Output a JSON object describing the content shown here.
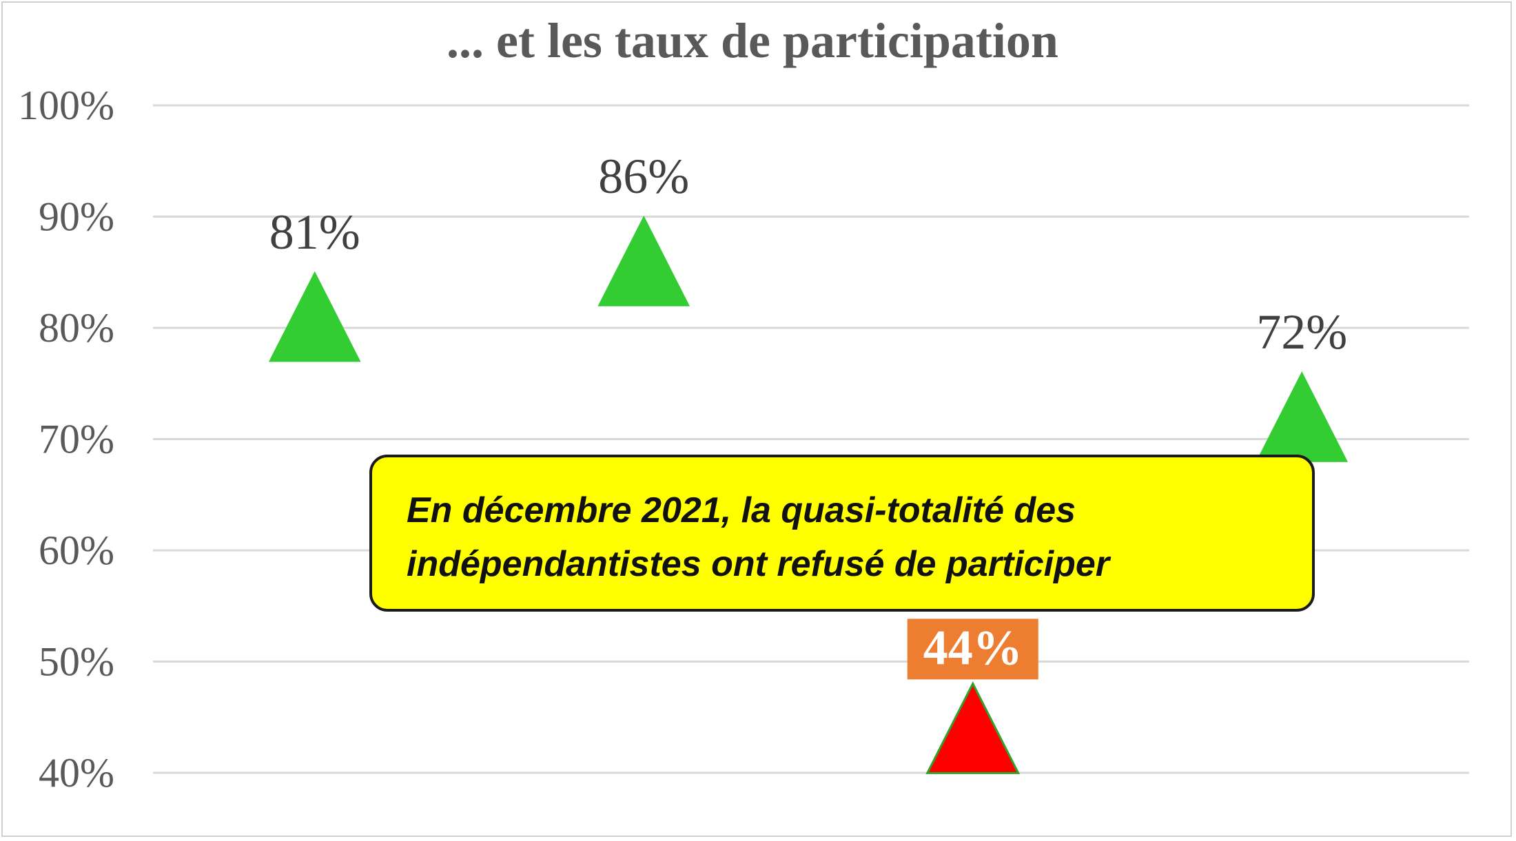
{
  "chart_data": {
    "type": "scatter",
    "title": "... et les taux de participation",
    "marker": "triangle",
    "xlabel": "",
    "ylabel": "",
    "ylim": [
      40,
      100
    ],
    "y_ticks": [
      "100%",
      "90%",
      "80%",
      "70%",
      "60%",
      "50%",
      "40%"
    ],
    "grid": true,
    "points": [
      {
        "label": "81%",
        "value": 81,
        "color": "#33cc33",
        "highlight": false
      },
      {
        "label": "86%",
        "value": 86,
        "color": "#33cc33",
        "highlight": false
      },
      {
        "label": "44%",
        "value": 44,
        "color": "#ff0000",
        "highlight": true,
        "label_background": "#ed7d31"
      },
      {
        "label": "72%",
        "value": 72,
        "color": "#33cc33",
        "highlight": false
      }
    ],
    "annotation": {
      "lines": [
        "En décembre 2021, la quasi-totalité des",
        "indépendantistes ont refusé de participer"
      ],
      "background": "#ffff00"
    }
  }
}
